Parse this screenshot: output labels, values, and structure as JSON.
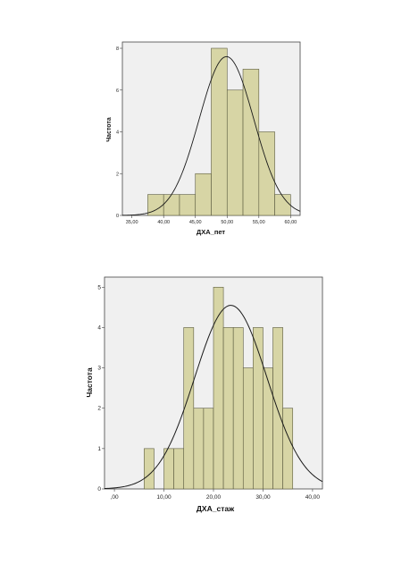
{
  "chart_data": [
    {
      "type": "bar",
      "subtype": "histogram",
      "xlabel": "ДХА_пет",
      "ylabel": "Частота",
      "xlim": [
        33.5,
        61.5
      ],
      "ylim": [
        0,
        8.3
      ],
      "xticks": [
        "35,00",
        "40,00",
        "45,00",
        "50,00",
        "55,00",
        "60,00"
      ],
      "yticks": [
        "0",
        "2",
        "4",
        "6",
        "8"
      ],
      "bins": [
        {
          "x0": 37.5,
          "x1": 40.0,
          "value": 1
        },
        {
          "x0": 40.0,
          "x1": 42.5,
          "value": 1
        },
        {
          "x0": 42.5,
          "x1": 45.0,
          "value": 1
        },
        {
          "x0": 45.0,
          "x1": 47.5,
          "value": 2
        },
        {
          "x0": 47.5,
          "x1": 50.0,
          "value": 8
        },
        {
          "x0": 50.0,
          "x1": 52.5,
          "value": 6
        },
        {
          "x0": 52.5,
          "x1": 55.0,
          "value": 7
        },
        {
          "x0": 55.0,
          "x1": 57.5,
          "value": 4
        },
        {
          "x0": 57.5,
          "x1": 60.0,
          "value": 1
        }
      ],
      "normal_curve": {
        "mean": 49.9,
        "sd": 4.3,
        "peak": 7.6
      },
      "grid": false,
      "colors": {
        "bar": "#d7d5a5",
        "bar_edge": "#5b5b3f",
        "plot_bg": "#f0f0f0",
        "curve": "#1a1a1a"
      }
    },
    {
      "type": "bar",
      "subtype": "histogram",
      "xlabel": "ДХА_стаж",
      "ylabel": "Частота",
      "xlim": [
        -2,
        42
      ],
      "ylim": [
        0,
        5.25
      ],
      "xticks": [
        ",00",
        "10,00",
        "20,00",
        "30,00",
        "40,00"
      ],
      "yticks": [
        "0",
        "1",
        "2",
        "3",
        "4",
        "5"
      ],
      "bins": [
        {
          "x0": 6,
          "x1": 8,
          "value": 1
        },
        {
          "x0": 10,
          "x1": 12,
          "value": 1
        },
        {
          "x0": 12,
          "x1": 14,
          "value": 1
        },
        {
          "x0": 14,
          "x1": 16,
          "value": 4
        },
        {
          "x0": 16,
          "x1": 18,
          "value": 2
        },
        {
          "x0": 18,
          "x1": 20,
          "value": 2
        },
        {
          "x0": 20,
          "x1": 22,
          "value": 5
        },
        {
          "x0": 22,
          "x1": 24,
          "value": 4
        },
        {
          "x0": 24,
          "x1": 26,
          "value": 4
        },
        {
          "x0": 26,
          "x1": 28,
          "value": 3
        },
        {
          "x0": 28,
          "x1": 30,
          "value": 4
        },
        {
          "x0": 30,
          "x1": 32,
          "value": 3
        },
        {
          "x0": 32,
          "x1": 34,
          "value": 4
        },
        {
          "x0": 34,
          "x1": 36,
          "value": 2
        }
      ],
      "normal_curve": {
        "mean": 23.5,
        "sd": 7.3,
        "peak": 4.55
      },
      "grid": false,
      "colors": {
        "bar": "#d7d5a5",
        "bar_edge": "#5b5b3f",
        "plot_bg": "#f0f0f0",
        "curve": "#1a1a1a"
      }
    }
  ]
}
